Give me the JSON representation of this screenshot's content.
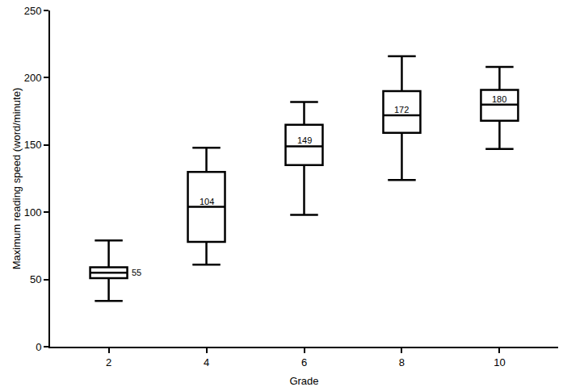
{
  "chart_data": {
    "type": "box",
    "x_label": "Grade",
    "y_label": "Maximum reading speed (word/minute)",
    "categories": [
      "2",
      "4",
      "6",
      "8",
      "10"
    ],
    "lower": [
      34,
      61,
      98,
      124,
      147
    ],
    "q1": [
      51,
      78,
      135,
      159,
      168
    ],
    "median": [
      55,
      104,
      149,
      172,
      180
    ],
    "q3": [
      59,
      130,
      165,
      190,
      191
    ],
    "upper": [
      79,
      148,
      182,
      216,
      208
    ],
    "color": "#000000",
    "ylim": [
      0,
      250
    ],
    "yticks": [
      0,
      50,
      100,
      150,
      200,
      250
    ],
    "grid": false,
    "data_labels": true
  }
}
